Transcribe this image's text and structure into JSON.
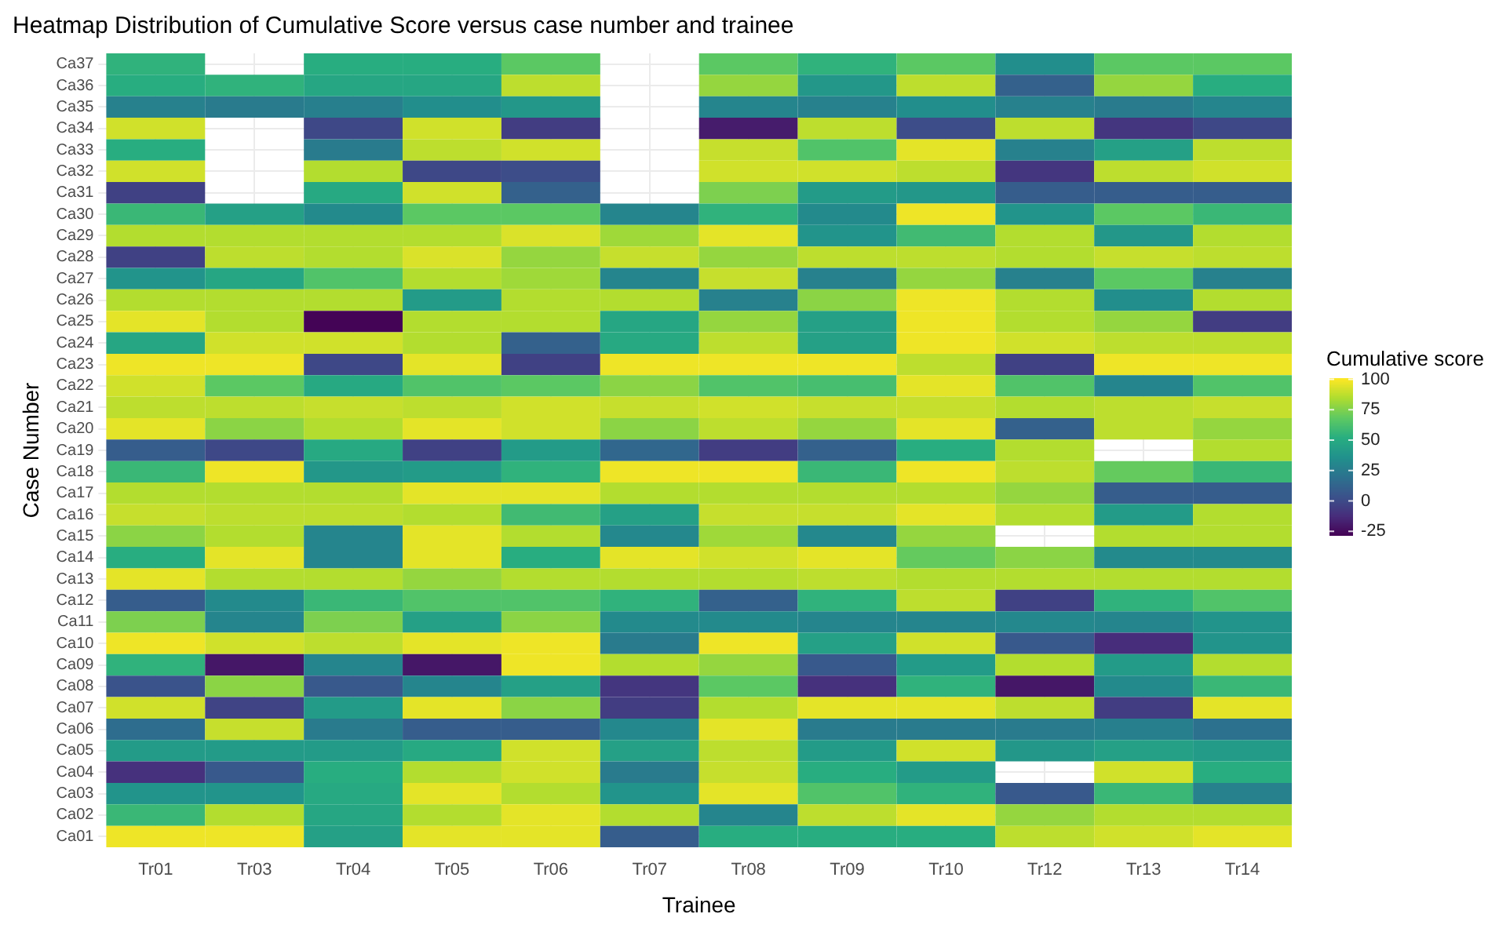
{
  "chart_data": {
    "type": "heatmap",
    "title": "Heatmap Distribution of Cumulative Score versus case number and trainee",
    "xlabel": "Trainee",
    "ylabel": "Case Number",
    "clabel": "Cumulative score",
    "categories": [
      "Tr01",
      "Tr03",
      "Tr04",
      "Tr05",
      "Tr06",
      "Tr07",
      "Tr08",
      "Tr09",
      "Tr10",
      "Tr12",
      "Tr13",
      "Tr14"
    ],
    "y_categories": [
      "Ca37",
      "Ca36",
      "Ca35",
      "Ca34",
      "Ca33",
      "Ca32",
      "Ca31",
      "Ca30",
      "Ca29",
      "Ca28",
      "Ca27",
      "Ca26",
      "Ca25",
      "Ca24",
      "Ca23",
      "Ca22",
      "Ca21",
      "Ca20",
      "Ca19",
      "Ca18",
      "Ca17",
      "Ca16",
      "Ca15",
      "Ca14",
      "Ca13",
      "Ca12",
      "Ca11",
      "Ca10",
      "Ca09",
      "Ca08",
      "Ca07",
      "Ca06",
      "Ca05",
      "Ca04",
      "Ca03",
      "Ca02",
      "Ca01"
    ],
    "cells": [
      [
        55,
        null,
        52,
        52,
        68,
        null,
        68,
        55,
        68,
        35,
        68,
        68
      ],
      [
        52,
        55,
        48,
        48,
        88,
        null,
        80,
        40,
        88,
        12,
        80,
        52
      ],
      [
        28,
        25,
        27,
        35,
        40,
        null,
        30,
        28,
        35,
        28,
        25,
        30
      ],
      [
        92,
        null,
        0,
        92,
        -5,
        null,
        -18,
        88,
        2,
        88,
        -8,
        0
      ],
      [
        52,
        null,
        25,
        88,
        92,
        null,
        90,
        65,
        96,
        28,
        45,
        88
      ],
      [
        92,
        null,
        86,
        0,
        2,
        null,
        92,
        92,
        88,
        -8,
        88,
        92
      ],
      [
        -3,
        null,
        50,
        92,
        12,
        null,
        75,
        42,
        40,
        10,
        10,
        10
      ],
      [
        58,
        45,
        33,
        68,
        68,
        30,
        55,
        33,
        98,
        38,
        68,
        58
      ],
      [
        86,
        86,
        86,
        86,
        94,
        82,
        96,
        38,
        60,
        86,
        40,
        86
      ],
      [
        -3,
        88,
        86,
        94,
        80,
        90,
        80,
        88,
        88,
        86,
        90,
        88
      ],
      [
        38,
        48,
        65,
        86,
        82,
        30,
        90,
        28,
        80,
        28,
        68,
        28
      ],
      [
        86,
        86,
        86,
        42,
        86,
        86,
        28,
        78,
        98,
        86,
        35,
        86
      ],
      [
        96,
        86,
        -27,
        86,
        86,
        48,
        80,
        45,
        98,
        86,
        80,
        -5
      ],
      [
        48,
        92,
        92,
        86,
        12,
        50,
        88,
        45,
        98,
        92,
        88,
        88
      ],
      [
        98,
        98,
        0,
        96,
        -3,
        98,
        98,
        98,
        88,
        -3,
        98,
        98
      ],
      [
        92,
        68,
        50,
        65,
        68,
        78,
        65,
        62,
        96,
        65,
        30,
        65
      ],
      [
        88,
        88,
        90,
        88,
        92,
        90,
        92,
        90,
        90,
        86,
        88,
        90
      ],
      [
        96,
        78,
        86,
        96,
        92,
        78,
        88,
        80,
        96,
        12,
        88,
        80
      ],
      [
        10,
        0,
        50,
        -3,
        42,
        15,
        -5,
        12,
        52,
        86,
        null,
        86
      ],
      [
        58,
        98,
        40,
        42,
        55,
        98,
        98,
        58,
        98,
        88,
        70,
        58
      ],
      [
        86,
        86,
        86,
        96,
        96,
        86,
        86,
        86,
        86,
        80,
        10,
        10
      ],
      [
        90,
        88,
        88,
        86,
        60,
        45,
        90,
        90,
        96,
        86,
        42,
        86
      ],
      [
        78,
        86,
        30,
        96,
        86,
        32,
        82,
        32,
        80,
        null,
        86,
        86
      ],
      [
        52,
        96,
        30,
        96,
        52,
        96,
        92,
        96,
        70,
        78,
        33,
        33
      ],
      [
        96,
        86,
        86,
        80,
        86,
        86,
        86,
        88,
        86,
        86,
        86,
        86
      ],
      [
        10,
        33,
        58,
        65,
        65,
        55,
        12,
        55,
        88,
        -3,
        55,
        65
      ],
      [
        75,
        30,
        75,
        45,
        78,
        33,
        33,
        30,
        30,
        32,
        30,
        38
      ],
      [
        98,
        92,
        88,
        96,
        98,
        25,
        98,
        45,
        92,
        8,
        -12,
        38
      ],
      [
        55,
        -20,
        30,
        -20,
        98,
        86,
        80,
        8,
        42,
        86,
        42,
        86
      ],
      [
        5,
        78,
        8,
        30,
        45,
        -8,
        68,
        -10,
        55,
        -20,
        33,
        58
      ],
      [
        92,
        -2,
        42,
        96,
        78,
        -5,
        86,
        96,
        96,
        88,
        -5,
        96
      ],
      [
        18,
        90,
        25,
        10,
        10,
        32,
        96,
        25,
        25,
        25,
        27,
        20
      ],
      [
        42,
        42,
        42,
        50,
        92,
        45,
        88,
        42,
        92,
        40,
        45,
        42
      ],
      [
        -10,
        8,
        52,
        86,
        92,
        25,
        90,
        52,
        42,
        null,
        92,
        52
      ],
      [
        38,
        38,
        50,
        96,
        86,
        38,
        96,
        65,
        55,
        8,
        58,
        28
      ],
      [
        58,
        86,
        48,
        86,
        96,
        86,
        30,
        88,
        96,
        80,
        86,
        86
      ],
      [
        98,
        98,
        45,
        96,
        96,
        10,
        52,
        52,
        52,
        88,
        92,
        96
      ]
    ],
    "clim": [
      -28,
      101
    ],
    "cticks": [
      -25,
      0,
      25,
      50,
      75,
      100
    ],
    "grid": true
  }
}
